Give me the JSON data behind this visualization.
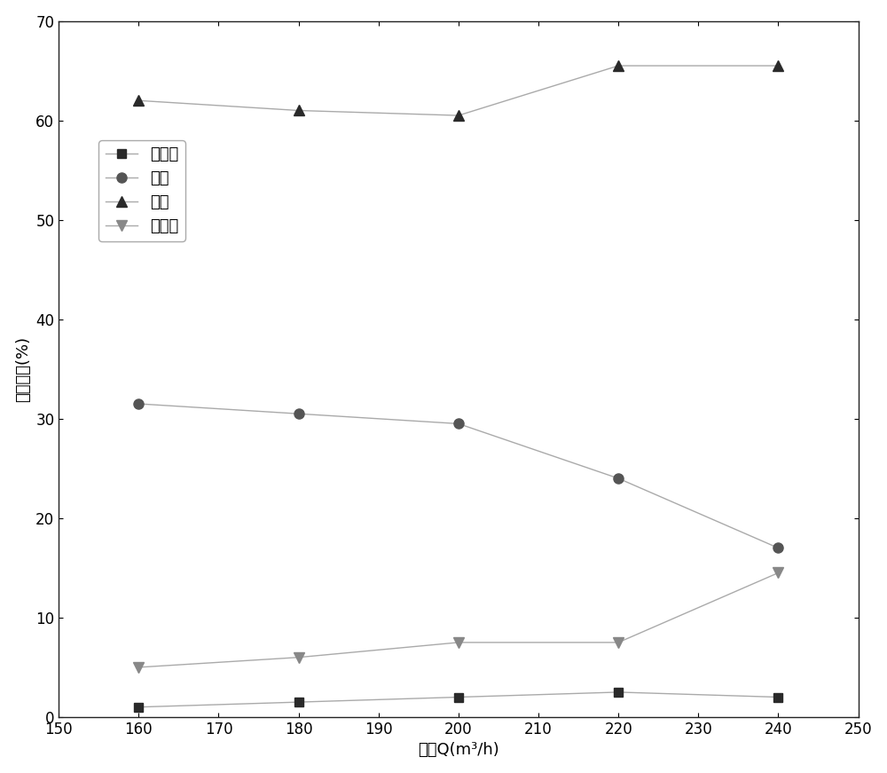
{
  "x": [
    160,
    180,
    200,
    220,
    240
  ],
  "inlet_pipe": [
    1.0,
    1.5,
    2.0,
    2.5,
    2.0
  ],
  "impeller": [
    31.5,
    30.5,
    29.5,
    24.0,
    17.0
  ],
  "volute": [
    62.0,
    61.0,
    60.5,
    65.5,
    65.5
  ],
  "outlet_pipe": [
    5.0,
    6.0,
    7.5,
    7.5,
    14.5
  ],
  "xlabel": "流量Q(m³/h)",
  "ylabel": "熵产比例(%)",
  "legend_inlet": "进口管",
  "legend_impeller": "叶轮",
  "legend_volute": "蜗壳",
  "legend_outlet": "出口管",
  "xlim": [
    150,
    250
  ],
  "ylim": [
    0,
    70
  ],
  "xticks": [
    150,
    160,
    170,
    180,
    190,
    200,
    210,
    220,
    230,
    240,
    250
  ],
  "yticks": [
    0,
    10,
    20,
    30,
    40,
    50,
    60,
    70
  ],
  "color_dark": "#303030",
  "color_mid": "#606060",
  "color_light": "#909090",
  "color_line": "#aaaaaa"
}
